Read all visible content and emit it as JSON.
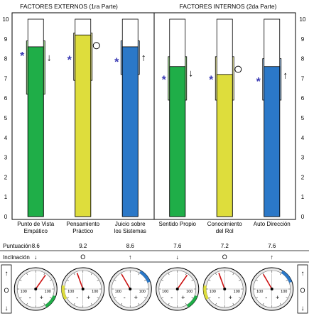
{
  "chart_data": {
    "type": "bar",
    "group_titles": [
      "FACTORES EXTERNOS (1ra Parte)",
      "FACTORES INTERNOS (2da Parte)"
    ],
    "categories": [
      [
        "Punto de Vista",
        "Empático"
      ],
      [
        "Pensamiento",
        "Práctico"
      ],
      [
        "Juicio sobre",
        "los Sistemas"
      ],
      [
        "Sentido Propio"
      ],
      [
        "Conocimiento",
        "del Rol"
      ],
      [
        "Auto Dirección"
      ]
    ],
    "y_ticks": [
      "0",
      "1",
      "2",
      "3",
      "4",
      "5",
      "6",
      "7",
      "8",
      "9",
      "10"
    ],
    "ylim": [
      0,
      10
    ],
    "values": [
      8.6,
      9.2,
      8.6,
      7.6,
      7.2,
      7.6
    ],
    "range_low": [
      6.2,
      6.9,
      7.2,
      5.9,
      5.9,
      5.9
    ],
    "range_high": [
      8.9,
      9.3,
      8.9,
      8.1,
      8.1,
      8.0
    ],
    "star_values": [
      8.2,
      8.0,
      7.9,
      7.0,
      7.0,
      6.9
    ],
    "inclination": [
      "↓",
      "O",
      "↑",
      "↓",
      "O",
      "↑"
    ],
    "labels": {
      "score": "Puntuación",
      "inclination": "Inclinación",
      "star": "*",
      "up": "↑",
      "circle": "O",
      "down": "↓",
      "minus": "-",
      "plus": "+",
      "gauge_100_left": "100",
      "gauge_100_right": "100"
    },
    "score_text": [
      "8.6",
      "9.2",
      "8.6",
      "7.6",
      "7.2",
      "7.6"
    ],
    "gauge_needle_angles": [
      -55,
      250,
      240,
      -55,
      250,
      240
    ],
    "colors": {
      "green": "#1fae48",
      "green_range": "#a9e39b",
      "yellow": "#dedd3c",
      "yellow_range": "#f3f0a8",
      "blue": "#2b78c8",
      "blue_range": "#a9ccef",
      "star": "#3b3bb4",
      "gauge_needle": "#cc1111"
    },
    "series_colors": [
      "green",
      "yellow",
      "blue",
      "green",
      "yellow",
      "blue"
    ]
  }
}
